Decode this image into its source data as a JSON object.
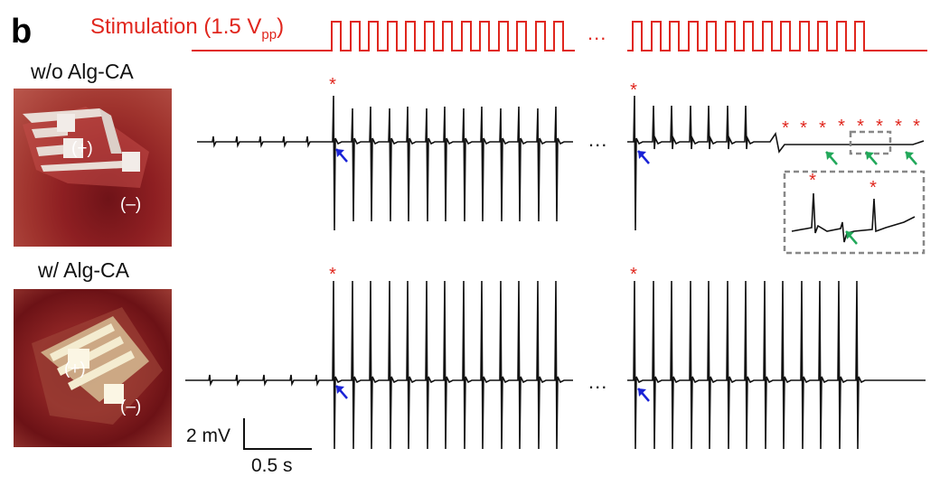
{
  "panel_letter": "b",
  "stimulation": {
    "label": "Stimulation (1.5 V",
    "subscript": "pp",
    "close": ")",
    "color": "#e0261d"
  },
  "rows": [
    {
      "condition": "w/o Alg-CA",
      "photo_plus": "(+)",
      "photo_minus": "(–)"
    },
    {
      "condition": "w/ Alg-CA",
      "photo_plus": "(+)",
      "photo_minus": "(–)"
    }
  ],
  "ellipsis": "...",
  "scale_bar": {
    "y_label": "2 mV",
    "x_label": "0.5 s"
  },
  "marker_symbol": "*",
  "colors": {
    "trace": "#111111",
    "stim": "#e0261d",
    "blue_arrow": "#1a23d6",
    "green_arrow": "#22a85a",
    "inset_box": "#888888"
  }
}
